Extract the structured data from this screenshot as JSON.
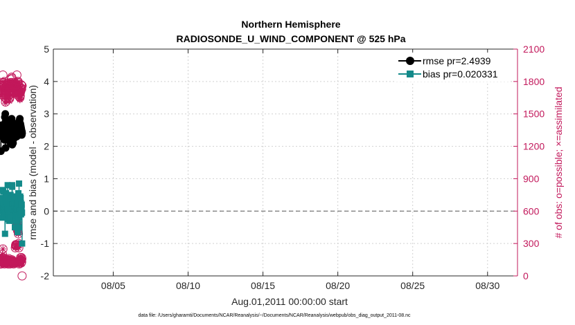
{
  "chart_data": {
    "type": "line",
    "title": "Northern Hemisphere",
    "subtitle": "RADIOSONDE_U_WIND_COMPONENT @ 525 hPa",
    "xlabel": "Aug.01,2011 00:00:00 start",
    "ylabel": "rmse and bias (model - observation)",
    "y2label": "# of obs: o=possible; ×=assimilated",
    "footnote": "data file: /Users/gharamti/Documents/NCAR/Reanalysis/~/Documents/NCAR/Reanalysis/webpub/obs_diag_output_2011-08.nc",
    "xlim": [
      1,
      32
    ],
    "ylim": [
      -2,
      5
    ],
    "y2lim": [
      0,
      2100
    ],
    "x_ticks": [
      5,
      10,
      15,
      20,
      25,
      30
    ],
    "x_tick_labels": [
      "08/05",
      "08/10",
      "08/15",
      "08/20",
      "08/25",
      "08/30"
    ],
    "y_ticks": [
      -2,
      -1,
      0,
      1,
      2,
      3,
      4,
      5
    ],
    "y_tick_labels": [
      "-2",
      "-1",
      "0",
      "1",
      "2",
      "3",
      "4",
      "5"
    ],
    "y2_ticks": [
      0,
      300,
      600,
      900,
      1200,
      1500,
      1800,
      2100
    ],
    "y2_tick_labels": [
      "0",
      "300",
      "600",
      "900",
      "1200",
      "1500",
      "1800",
      "2100"
    ],
    "zero_line": 0,
    "colors": {
      "rmse": "#000000",
      "bias": "#138a8a",
      "obs": "#c2185b",
      "axis": "#262626",
      "grid": "#d0d0d0"
    },
    "legend": {
      "position": "top-right",
      "entries": [
        "rmse pr=2.4939",
        "bias pr=0.020331"
      ]
    },
    "series": [
      {
        "name": "rmse pr=2.4939",
        "axis": "left",
        "marker": "circle",
        "values": [
          2.5,
          1.85,
          2.65,
          2.35,
          2.55,
          2.5,
          2.3,
          2.45,
          2.35,
          2.45,
          2.6,
          2.65,
          2.55,
          2.4,
          2.35,
          2.55,
          2.35,
          2.4,
          2.55,
          2.35,
          2.6,
          2.45,
          2.55,
          2.6,
          2.45,
          2.2,
          2.6,
          2.9,
          2.55,
          2.6,
          3.0,
          2.75,
          1.95,
          2.65,
          2.4,
          2.6,
          2.4,
          2.55,
          2.2,
          2.65,
          2.45,
          2.5,
          2.35,
          2.6,
          2.45,
          2.7,
          2.3,
          2.45,
          2.7,
          2.35,
          2.55,
          2.3,
          2.6,
          2.45,
          2.2,
          2.5,
          2.6,
          2.4,
          2.55,
          2.3,
          2.6,
          2.45,
          2.35,
          2.6,
          2.55,
          2.1,
          2.6,
          2.45,
          2.35,
          2.6,
          2.45,
          2.55,
          2.85,
          2.5,
          2.2,
          2.55,
          2.05,
          2.5,
          2.45,
          2.6,
          2.35,
          2.1,
          2.5,
          2.65,
          2.4,
          2.55,
          2.3,
          2.6,
          2.45,
          2.25,
          2.6,
          2.45,
          2.55,
          2.65,
          2.4,
          2.3,
          2.6,
          2.45,
          2.35,
          2.55,
          2.4,
          2.65,
          2.5,
          2.4,
          2.7,
          2.5,
          2.3,
          2.6,
          2.45,
          2.55,
          2.4,
          2.5,
          2.45,
          2.55,
          2.4,
          2.6,
          2.5,
          2.55,
          2.4,
          2.6,
          2.7,
          2.5,
          2.35,
          2.75,
          2.8,
          2.6,
          2.85,
          2.65,
          2.55,
          2.7,
          2.5,
          2.65,
          2.45,
          2.6,
          2.45,
          2.55,
          2.4,
          2.5,
          2.45,
          2.35,
          2.45,
          2.4
        ]
      },
      {
        "name": "bias pr=0.020331",
        "axis": "left",
        "marker": "square",
        "values": [
          0.15,
          0.1,
          0.15,
          0.4,
          0.0,
          0.15,
          -0.2,
          0.2,
          0.0,
          0.1,
          0.3,
          0.05,
          0.15,
          0.0,
          0.15,
          0.15,
          -0.2,
          0.65,
          0.2,
          0.6,
          0.1,
          -0.1,
          0.1,
          -0.05,
          0.35,
          0.15,
          -0.1,
          -0.05,
          0.15,
          0.05,
          -0.15,
          0.1,
          -0.7,
          0.05,
          0.15,
          0.0,
          0.2,
          0.0,
          0.3,
          0.55,
          0.4,
          0.15,
          0.5,
          0.3,
          0.15,
          0.45,
          -0.15,
          0.3,
          0.15,
          -0.1,
          0.1,
          0.25,
          0.8,
          0.05,
          0.1,
          -0.25,
          0.1,
          -0.1,
          0.3,
          -0.2,
          0.05,
          0.15,
          0.0,
          -0.3,
          0.1,
          -0.2,
          0.05,
          -0.25,
          0.2,
          0.05,
          0.1,
          -0.2,
          0.4,
          0.5,
          0.3,
          0.05,
          0.15,
          0.2,
          0.4,
          0.2,
          0.0,
          0.2,
          0.15,
          0.45,
          0.1,
          0.8,
          0.75,
          0.2,
          0.2,
          0.45,
          0.15,
          0.0,
          0.2,
          0.1,
          -0.15,
          0.1,
          0.2,
          0.05,
          0.45,
          0.2,
          -0.3,
          0.1,
          0.05,
          0.4,
          0.25,
          0.15,
          -0.5,
          0.2,
          0.15,
          0.0,
          -0.1,
          0.0,
          -0.15,
          0.1,
          -0.1,
          -0.2,
          -0.3,
          0.1,
          0.2,
          -0.15,
          0.1,
          0.15,
          -0.15,
          0.2,
          0.25,
          0.15,
          0.05,
          -0.65,
          0.2,
          0.1,
          -0.3,
          0.05,
          0.55,
          0.1,
          -0.2,
          0.3,
          -0.5,
          0.85,
          0.1,
          0.0,
          0.2,
          0.05,
          0.25,
          0.0,
          0.3,
          0.05,
          0.45,
          -0.1,
          0.15,
          0.4,
          0.0,
          0.25,
          -0.1,
          0.15,
          -0.05,
          0.2,
          0.1,
          0.2,
          -0.05,
          -0.05,
          -1.0
        ]
      },
      {
        "name": "possible",
        "axis": "right",
        "marker": "circle-open",
        "values": [
          1740,
          1680,
          1720,
          1700,
          1740,
          1760,
          1720,
          1770,
          1750,
          1860,
          1760,
          1790,
          1770,
          1790,
          1770,
          1800,
          1740,
          1700,
          1750,
          1650,
          1610,
          1680,
          1720,
          1700,
          1640,
          1760,
          1780,
          1760,
          1740,
          1780,
          1720,
          1700,
          1740,
          1780,
          1730,
          1700,
          1650,
          1640,
          1680,
          1780,
          1760,
          1790,
          1770,
          1760,
          1780,
          1820,
          1840,
          1830,
          1790,
          1770,
          1760,
          1780,
          1740,
          1700,
          1720,
          1740,
          1770,
          1760,
          1700,
          1710,
          1740,
          1760,
          1770,
          1750,
          1740,
          1710,
          1760,
          1770,
          1860,
          1750,
          1770,
          1790,
          1800,
          1800,
          1760,
          1730,
          1770,
          1720,
          1700,
          1690,
          1660,
          1650,
          1670,
          1700,
          1720,
          1730,
          1770,
          1740,
          1730,
          1760,
          1760
        ],
        "assimilated": [
          1680,
          1660,
          1690,
          1690,
          1700,
          1720,
          1700,
          1740,
          1720,
          1800,
          1720,
          1760,
          1740,
          1760,
          1740,
          1760,
          1710,
          1680,
          1700,
          1620,
          1600,
          1650,
          1700,
          1660,
          1620,
          1720,
          1740,
          1700,
          1700,
          1740,
          1690,
          1660,
          1700,
          1740,
          1700,
          1660,
          1620,
          1620,
          1650,
          1740,
          1720,
          1750,
          1730,
          1720,
          1750,
          1780,
          1800,
          1780,
          1750,
          1740,
          1720,
          1740,
          1700,
          1660,
          1690,
          1700,
          1730,
          1720,
          1680,
          1680,
          1700,
          1720,
          1740,
          1720,
          1700,
          1680,
          1730,
          1740,
          1810,
          1720,
          1740,
          1760,
          1770,
          1770,
          1730,
          1700,
          1740,
          1690,
          1680,
          1660,
          1640,
          1630,
          1650,
          1670,
          1690,
          1700,
          1740,
          1710,
          1700,
          1720,
          1720
        ]
      },
      {
        "name": "possible-low",
        "axis": "right",
        "marker": "circle-open",
        "values": [
          110,
          110,
          120,
          130,
          140,
          150,
          130,
          160,
          200,
          160,
          250,
          170,
          160,
          150,
          130,
          120,
          120,
          110,
          120,
          130,
          120,
          140,
          140,
          150,
          150,
          120,
          150,
          120,
          140,
          150,
          130,
          140,
          120,
          110,
          140,
          120,
          150,
          160,
          130,
          140,
          130,
          130,
          120,
          110,
          120,
          140,
          130,
          140,
          130,
          120,
          140,
          150,
          130,
          120,
          140,
          130,
          120,
          130,
          120,
          110,
          130,
          120,
          120,
          130,
          120,
          130,
          120,
          260,
          280,
          290,
          280,
          290,
          280,
          280,
          480,
          470,
          450,
          420,
          480,
          430,
          410,
          390,
          300,
          260,
          120,
          110,
          120,
          130,
          120,
          140,
          150,
          170,
          140,
          150,
          120,
          170,
          130,
          160,
          0
        ]
      }
    ]
  }
}
